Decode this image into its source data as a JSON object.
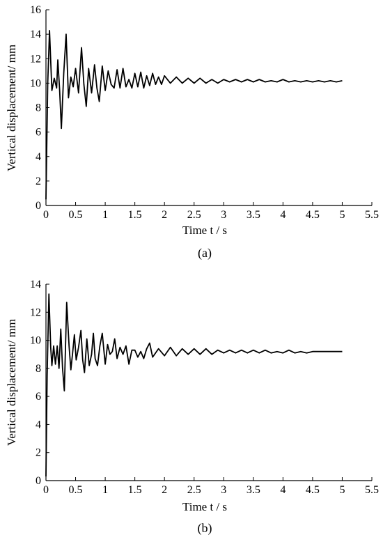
{
  "chart_data": [
    {
      "type": "line",
      "panel_label": "(a)",
      "xlabel": "Time t / s",
      "ylabel": "Vertical displacement/ mm",
      "xlim": [
        0,
        5.5
      ],
      "ylim": [
        0,
        16
      ],
      "xticks": [
        0,
        0.5,
        1,
        1.5,
        2,
        2.5,
        3,
        3.5,
        4,
        4.5,
        5,
        5.5
      ],
      "yticks": [
        0,
        2,
        4,
        6,
        8,
        10,
        12,
        14,
        16
      ],
      "xtick_labels": [
        "0",
        "0.5",
        "1",
        "1.5",
        "2",
        "2.5",
        "3",
        "3.5",
        "4",
        "4.5",
        "5",
        "5.5"
      ],
      "ytick_labels": [
        "0",
        "2",
        "4",
        "6",
        "8",
        "10",
        "12",
        "14",
        "16"
      ],
      "grid": false,
      "series": [
        {
          "color": "#000000",
          "x": [
            0,
            0.03,
            0.06,
            0.1,
            0.14,
            0.18,
            0.2,
            0.23,
            0.26,
            0.3,
            0.34,
            0.38,
            0.42,
            0.46,
            0.5,
            0.55,
            0.6,
            0.64,
            0.68,
            0.72,
            0.77,
            0.82,
            0.86,
            0.9,
            0.95,
            1.0,
            1.05,
            1.1,
            1.15,
            1.2,
            1.25,
            1.3,
            1.35,
            1.4,
            1.45,
            1.5,
            1.55,
            1.6,
            1.65,
            1.7,
            1.75,
            1.8,
            1.85,
            1.9,
            1.95,
            2.0,
            2.1,
            2.2,
            2.3,
            2.4,
            2.5,
            2.6,
            2.7,
            2.8,
            2.9,
            3.0,
            3.1,
            3.2,
            3.3,
            3.4,
            3.5,
            3.6,
            3.7,
            3.8,
            3.9,
            4.0,
            4.1,
            4.2,
            4.3,
            4.4,
            4.5,
            4.6,
            4.7,
            4.8,
            4.9,
            5.0
          ],
          "y": [
            0.5,
            10.0,
            14.3,
            9.4,
            10.4,
            9.6,
            11.9,
            9.5,
            6.3,
            10.8,
            14.0,
            8.8,
            10.5,
            9.7,
            11.2,
            9.2,
            12.9,
            9.9,
            8.1,
            11.2,
            9.2,
            11.5,
            9.6,
            8.5,
            11.4,
            9.4,
            11.0,
            9.9,
            9.6,
            11.1,
            9.6,
            11.2,
            9.7,
            10.3,
            9.6,
            10.8,
            9.7,
            10.9,
            9.6,
            10.6,
            9.8,
            10.8,
            9.9,
            10.5,
            9.9,
            10.6,
            10.0,
            10.5,
            10.0,
            10.4,
            10.0,
            10.4,
            10.0,
            10.3,
            10.0,
            10.3,
            10.1,
            10.3,
            10.1,
            10.3,
            10.1,
            10.3,
            10.1,
            10.2,
            10.1,
            10.3,
            10.1,
            10.2,
            10.1,
            10.2,
            10.1,
            10.2,
            10.1,
            10.2,
            10.1,
            10.2
          ]
        }
      ]
    },
    {
      "type": "line",
      "panel_label": "(b)",
      "xlabel": "Time t / s",
      "ylabel": "Vertical displacement/ mm",
      "xlim": [
        0,
        5.5
      ],
      "ylim": [
        0,
        14
      ],
      "xticks": [
        0,
        0.5,
        1,
        1.5,
        2,
        2.5,
        3,
        3.5,
        4,
        4.5,
        5,
        5.5
      ],
      "yticks": [
        0,
        2,
        4,
        6,
        8,
        10,
        12,
        14
      ],
      "xtick_labels": [
        "0",
        "0.5",
        "1",
        "1.5",
        "2",
        "2.5",
        "3",
        "3.5",
        "4",
        "4.5",
        "5",
        "5.5"
      ],
      "ytick_labels": [
        "0",
        "2",
        "4",
        "6",
        "8",
        "10",
        "12",
        "14"
      ],
      "grid": false,
      "series": [
        {
          "color": "#000000",
          "x": [
            0,
            0.02,
            0.05,
            0.08,
            0.1,
            0.13,
            0.16,
            0.19,
            0.22,
            0.25,
            0.28,
            0.31,
            0.35,
            0.39,
            0.42,
            0.45,
            0.48,
            0.51,
            0.55,
            0.59,
            0.62,
            0.65,
            0.69,
            0.73,
            0.77,
            0.8,
            0.83,
            0.87,
            0.91,
            0.95,
            1.0,
            1.04,
            1.08,
            1.12,
            1.16,
            1.2,
            1.25,
            1.3,
            1.35,
            1.4,
            1.45,
            1.5,
            1.55,
            1.6,
            1.65,
            1.7,
            1.75,
            1.8,
            1.9,
            2.0,
            2.1,
            2.2,
            2.3,
            2.4,
            2.5,
            2.6,
            2.7,
            2.8,
            2.9,
            3.0,
            3.1,
            3.2,
            3.3,
            3.4,
            3.5,
            3.6,
            3.7,
            3.8,
            3.9,
            4.0,
            4.1,
            4.2,
            4.3,
            4.4,
            4.5,
            4.6,
            4.7,
            4.8,
            4.9,
            5.0
          ],
          "y": [
            0.3,
            7.5,
            13.3,
            9.5,
            8.2,
            9.6,
            8.3,
            9.6,
            8.0,
            10.8,
            8.0,
            6.4,
            12.7,
            9.6,
            7.9,
            9.1,
            10.4,
            8.6,
            9.5,
            10.7,
            8.6,
            7.7,
            10.1,
            8.2,
            9.0,
            10.5,
            8.7,
            8.2,
            9.6,
            10.5,
            8.3,
            9.7,
            9.0,
            9.2,
            10.1,
            8.7,
            9.5,
            9.0,
            9.6,
            8.3,
            9.3,
            9.3,
            8.8,
            9.2,
            8.7,
            9.4,
            9.8,
            8.8,
            9.4,
            8.9,
            9.5,
            8.9,
            9.4,
            9.0,
            9.4,
            9.0,
            9.4,
            9.0,
            9.3,
            9.1,
            9.3,
            9.1,
            9.3,
            9.1,
            9.3,
            9.1,
            9.3,
            9.1,
            9.2,
            9.1,
            9.3,
            9.1,
            9.2,
            9.1,
            9.2,
            9.2,
            9.2,
            9.2,
            9.2,
            9.2
          ]
        }
      ]
    }
  ]
}
